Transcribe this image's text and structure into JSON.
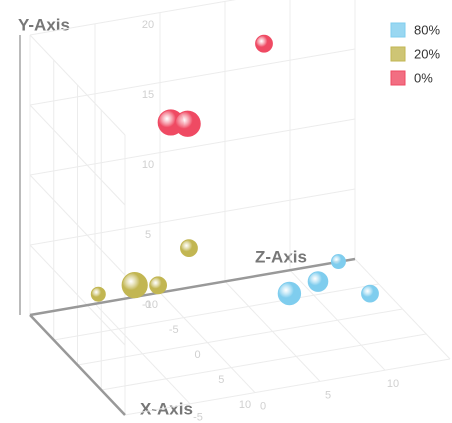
{
  "chart_data": {
    "type": "scatter3d",
    "x_label": "X-Axis",
    "y_label": "Y-Axis",
    "z_label": "Z-Axis",
    "xlim": [
      -10,
      10
    ],
    "ylim": [
      0,
      20
    ],
    "zlim": [
      -10,
      15
    ],
    "xticks": [
      -10,
      -5,
      0,
      5,
      10
    ],
    "yticks": [
      0,
      5,
      10,
      15,
      20
    ],
    "zticks": [
      -10,
      -5,
      0,
      5,
      10,
      15
    ],
    "grid": true,
    "legend": "top-right",
    "series": [
      {
        "name": "80%",
        "color": "#7fcdee",
        "x": [
          0,
          0,
          -5,
          0
        ],
        "y": [
          2.5,
          3.0,
          2.1,
          1.5
        ],
        "z": [
          6.3,
          8.5,
          11.9,
          12.5
        ],
        "size": [
          8,
          7,
          5,
          6
        ]
      },
      {
        "name": "20%",
        "color": "#c2b652",
        "x": [
          -5,
          0,
          0,
          0
        ],
        "y": [
          4.9,
          5.0,
          4.7,
          4.8
        ],
        "z": [
          0.4,
          -5.6,
          -3.8,
          -8.4
        ],
        "size": [
          6,
          9,
          6,
          5
        ]
      },
      {
        "name": "0%",
        "color": "#ef4a63",
        "x": [
          -10,
          -5,
          -5
        ],
        "y": [
          16.5,
          14.1,
          13.8
        ],
        "z": [
          8,
          -1,
          0.3
        ],
        "size": [
          6,
          9,
          9
        ]
      }
    ]
  }
}
